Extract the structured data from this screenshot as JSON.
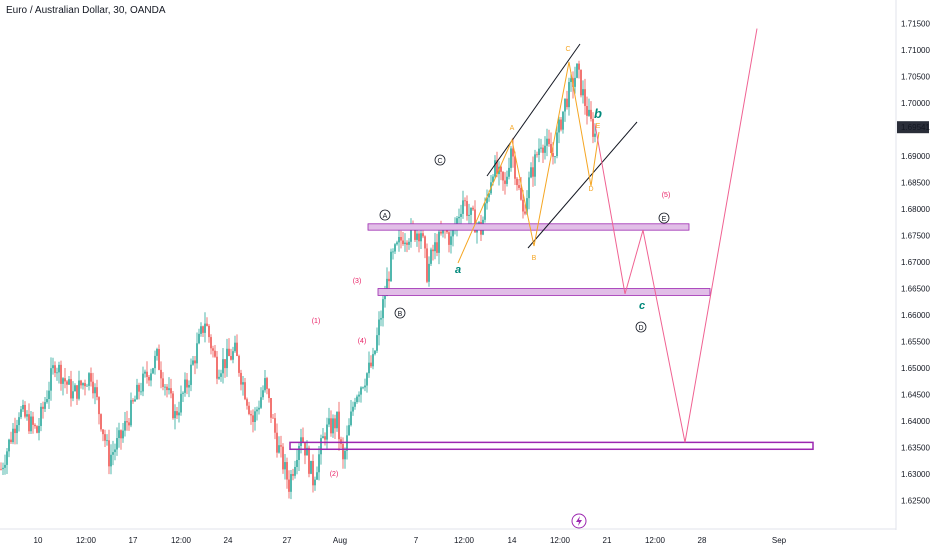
{
  "title": "Euro / Australian Dollar, 30, OANDA",
  "chart_data": {
    "type": "candlestick",
    "title": "Euro / Australian Dollar, 30, OANDA",
    "ylim": [
      1.6225,
      1.7175
    ],
    "y_ticks": [
      "1.71500",
      "1.71000",
      "1.70500",
      "1.70000",
      "1.69541",
      "1.69000",
      "1.68500",
      "1.68000",
      "1.67500",
      "1.67000",
      "1.66500",
      "1.66000",
      "1.65500",
      "1.65000",
      "1.64500",
      "1.64000",
      "1.63500",
      "1.63000",
      "1.62500"
    ],
    "highlighted_price": "1.69541",
    "x_ticks": [
      "10",
      "12:00",
      "17",
      "12:00",
      "24",
      "27",
      "Aug",
      "7",
      "12:00",
      "14",
      "12:00",
      "21",
      "12:00",
      "28",
      "Sep"
    ],
    "price_path_points": [
      [
        0,
        1.631
      ],
      [
        3,
        1.642
      ],
      [
        6,
        1.638
      ],
      [
        9,
        1.651
      ],
      [
        12,
        1.645
      ],
      [
        15,
        1.649
      ],
      [
        18,
        1.633
      ],
      [
        20,
        1.637
      ],
      [
        23,
        1.646
      ],
      [
        26,
        1.652
      ],
      [
        29,
        1.641
      ],
      [
        31,
        1.647
      ],
      [
        34,
        1.659
      ],
      [
        36,
        1.65
      ],
      [
        39,
        1.653
      ],
      [
        42,
        1.64
      ],
      [
        44,
        1.647
      ],
      [
        46,
        1.636
      ],
      [
        48,
        1.628
      ],
      [
        50,
        1.638
      ],
      [
        52,
        1.629
      ],
      [
        54,
        1.638
      ],
      [
        56,
        1.64
      ],
      [
        57,
        1.632
      ],
      [
        59,
        1.645
      ],
      [
        62,
        1.651
      ],
      [
        63,
        1.658
      ],
      [
        65,
        1.67
      ],
      [
        67,
        1.675
      ],
      [
        70,
        1.676
      ],
      [
        71,
        1.668
      ],
      [
        72,
        1.672
      ],
      [
        74,
        1.676
      ],
      [
        75,
        1.674
      ],
      [
        77,
        1.682
      ],
      [
        78,
        1.679
      ],
      [
        80,
        1.676
      ],
      [
        82,
        1.688
      ],
      [
        84,
        1.684
      ],
      [
        85,
        1.692
      ],
      [
        87,
        1.679
      ],
      [
        88,
        1.685
      ],
      [
        90,
        1.693
      ],
      [
        92,
        1.69
      ],
      [
        94,
        1.7
      ],
      [
        96,
        1.706
      ],
      [
        98,
        1.697
      ],
      [
        99,
        1.694
      ]
    ],
    "projection_path": [
      [
        99,
        1.696
      ],
      [
        104,
        1.664
      ],
      [
        107,
        1.676
      ],
      [
        114,
        1.636
      ],
      [
        126,
        1.714
      ]
    ],
    "zones": [
      {
        "from": 1.676,
        "to": 1.6772
      },
      {
        "from": 1.6637,
        "to": 1.665
      },
      {
        "from": 1.6347,
        "to": 1.636
      }
    ],
    "wave_labels": [
      "A",
      "B",
      "C",
      "a",
      "b",
      "c",
      "D",
      "E",
      "(1)",
      "(2)",
      "(3)",
      "(4)",
      "(5)"
    ],
    "circled_labels": [
      "A",
      "B",
      "C",
      "D",
      "E"
    ],
    "triangle_labels": [
      "A",
      "B",
      "C",
      "D",
      "E"
    ],
    "colors": {
      "up": "#26a69a",
      "down": "#ef5350",
      "projection": "#f06292",
      "zone_fill": "#e1bee7",
      "zone_border": "#9c27b0",
      "triangle": "#f5a623",
      "channel": "#131722",
      "wave_abc": "#00897b",
      "wave_numbers": "#e91e63"
    }
  }
}
